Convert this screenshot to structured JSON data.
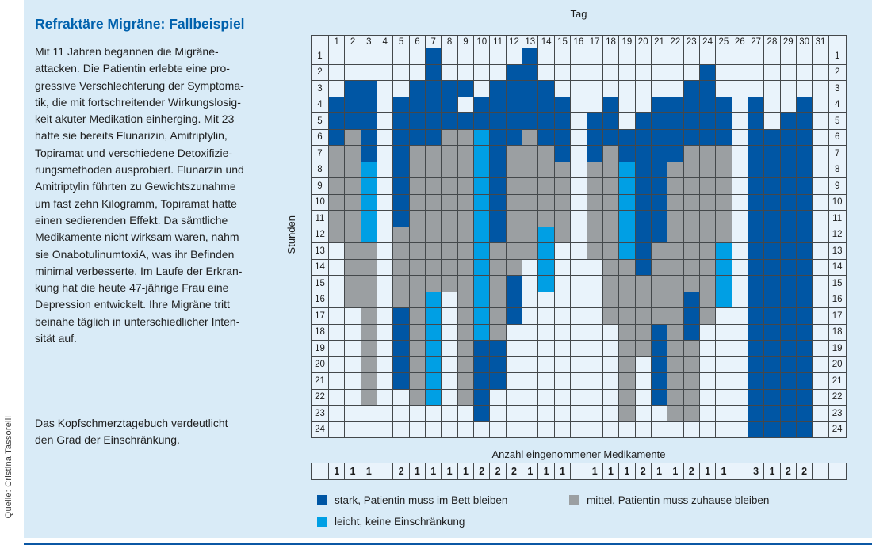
{
  "source_credit": "Quelle: Cristina Tassorelli",
  "case_text": {
    "title": "Refraktäre Migräne: Fallbeispiel",
    "body_lines": [
      "Mit 11 Jahren begannen die Migräne-",
      "attacken. Die Patientin erlebte eine pro-",
      "gressive Verschlechterung der Symptoma-",
      "tik, die mit fortschreitender Wirkungslosig-",
      "keit akuter Medikation einherging. Mit 23",
      "hatte sie bereits Flunarizin, Amitriptylin,",
      "Topiramat und verschiedene Detoxifizie-",
      "rungsmethoden ausprobiert. Flunarzin und",
      "Amitriptylin führten zu Gewichtszunahme",
      "um fast zehn Kilogramm, Topiramat hatte",
      "einen sedierenden Effekt. Da sämtliche",
      "Medikamente nicht wirksam waren, nahm",
      "sie OnabotulinumtoxiA, was ihr Befinden",
      "minimal verbesserte. Im Laufe der Erkran-",
      "kung hat die heute 47-jährige Frau eine",
      "Depression entwickelt. Ihre Migräne tritt",
      "beinahe täglich in unterschiedlicher Inten-",
      "sität auf."
    ],
    "note_lines": [
      "Das Kopfschmerztagebuch verdeutlicht",
      "den Grad der Einschränkung."
    ]
  },
  "chart_data": {
    "type": "heatmap",
    "x_axis_label": "Tag",
    "y_axis_label": "Stunden",
    "days": [
      1,
      2,
      3,
      4,
      5,
      6,
      7,
      8,
      9,
      10,
      11,
      12,
      13,
      14,
      15,
      16,
      17,
      18,
      19,
      20,
      21,
      22,
      23,
      24,
      25,
      26,
      27,
      28,
      29,
      30,
      31
    ],
    "hours": [
      1,
      2,
      3,
      4,
      5,
      6,
      7,
      8,
      9,
      10,
      11,
      12,
      13,
      14,
      15,
      16,
      17,
      18,
      19,
      20,
      21,
      22,
      23,
      24
    ],
    "cell_colors": {
      "W": "#e9f3fb",
      "D": "#0056a4",
      "G": "#9b9fa2",
      "C": "#009fe4"
    },
    "cells_by_day": [
      "WWWDDDGGGGGGWWWWWWWWWWWW",
      "WWDDDGGGGGGGGGGGWWWWWWWW",
      "WWDDDDDCCCCCGGGGGGGGGGWW",
      "WWWWWWWWWWWWWWWWWWWWWWWW",
      "WWWDDDDDDDDGGGGGDDDDDWWW",
      "WWDDDDGGGGGGGGGGGGGGGGWW",
      "DDDDDDGGGGGGGGGCCCCCCCWW",
      "WWDDDGGGGGGGGGGWWWWWWWWW",
      "WWDWDGGGGGGGGGGGGGGGGGWW",
      "WWWDDCCCCCCCCCCCCCDDDDDW",
      "WWDDDDDDDDDDGGGGGGDDDWWW",
      "WDDDDDGGGGGGGGDDDWWWWWWW",
      "DDDDDGGGGGGGGWWWWWWWWWWW",
      "WWDDDDGGGGGCCCCWWWWWWWWW",
      "WWWDDDDGGGGGWWWWWWWWWWWW",
      "WWWWWWWWWWWWWWWWWWWWWWWW",
      "WWWWDDDGGGGGGWWWWWWWWWWW",
      "WWWDDDGGGGGGGGGGGWWWWWWW",
      "WWWWWDDCCCCCCGGGGGGGGGGW",
      "WWWWDDDDDDDDDDGGGGGWWWWW",
      "WWWDDDDDDDDDGGGGGDDDDDWW",
      "WWWDDDDGGGGGGGGGGGGGGGGW",
      "WWDDDDGGGGGGGGGDDDGGGGGW",
      "WDDDDDGGGGGGGGGGGWWWWWWW",
      "WWWDDDGGGGGGCCCCWWWWWWWW",
      "WWWWWWWWWWWWWWWWWWWWWWWW",
      "WWWDDDDDDDDDDDDDDDDDDDDD",
      "WWWWWDDDDDDDDDDDDDDDDDDD",
      "WWWWDDDDDDDDDDDDDDDDDDDD",
      "WWWDDDDDDDDDDDDDDDDDDDDD",
      "WWWWWWWWWWWWWWWWWWWWWWWW"
    ],
    "medication_label": "Anzahl eingenommener Medikamente",
    "medications_per_day": [
      "1",
      "1",
      "1",
      "",
      "2",
      "1",
      "1",
      "1",
      "1",
      "2",
      "2",
      "2",
      "1",
      "1",
      "1",
      "",
      "1",
      "1",
      "1",
      "2",
      "1",
      "1",
      "2",
      "1",
      "1",
      "",
      "3",
      "1",
      "2",
      "2",
      ""
    ],
    "legend": [
      {
        "code": "D",
        "color": "#0056a4",
        "label": "stark, Patientin muss im Bett bleiben"
      },
      {
        "code": "G",
        "color": "#9b9fa2",
        "label": "mittel, Patientin muss zuhause bleiben"
      },
      {
        "code": "C",
        "color": "#009fe4",
        "label": "leicht, keine Einschränkung"
      }
    ]
  },
  "colors": {
    "panel_background": "#d9ebf7",
    "grid_line": "#44484b",
    "title_blue": "#0061ad",
    "bottom_rule": "#0b57a4"
  }
}
